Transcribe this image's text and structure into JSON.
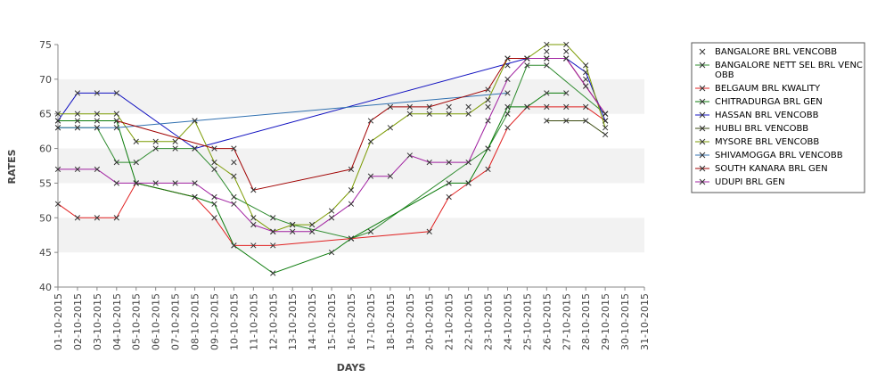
{
  "chart_data": {
    "type": "line",
    "xlabel": "DAYS",
    "ylabel": "RATES",
    "ylim": [
      40,
      75
    ],
    "yticks": [
      40,
      45,
      50,
      55,
      60,
      65,
      70,
      75
    ],
    "grid": "alternating horizontal bands",
    "legend_position": "right",
    "marker": "x",
    "categories": [
      "01-10-2015",
      "02-10-2015",
      "03-10-2015",
      "04-10-2015",
      "05-10-2015",
      "06-10-2015",
      "07-10-2015",
      "08-10-2015",
      "09-10-2015",
      "10-10-2015",
      "11-10-2015",
      "12-10-2015",
      "13-10-2015",
      "14-10-2015",
      "15-10-2015",
      "16-10-2015",
      "17-10-2015",
      "18-10-2015",
      "19-10-2015",
      "20-10-2015",
      "21-10-2015",
      "22-10-2015",
      "23-10-2015",
      "24-10-2015",
      "25-10-2015",
      "26-10-2015",
      "27-10-2015",
      "28-10-2015",
      "29-10-2015",
      "30-10-2015",
      "31-10-2015"
    ],
    "series": [
      {
        "name": "BANGALORE BRL VENCOBB",
        "color": "#7a7a7a",
        "line": false,
        "values": [
          null,
          null,
          null,
          null,
          null,
          null,
          null,
          null,
          null,
          58,
          null,
          null,
          null,
          null,
          null,
          null,
          null,
          null,
          null,
          null,
          66,
          66,
          66,
          72,
          null,
          74,
          74,
          70,
          64,
          null,
          null
        ]
      },
      {
        "name": "BANGALORE NETT SEL BRL VENCOBB",
        "color": "#2e8b2e",
        "line": true,
        "values": [
          63,
          63,
          63,
          58,
          58,
          60,
          60,
          60,
          57,
          53,
          null,
          50,
          49,
          null,
          null,
          47,
          48,
          null,
          null,
          null,
          null,
          null,
          60,
          65,
          72,
          72,
          null,
          null,
          65,
          null,
          null
        ]
      },
      {
        "name": "BELGAUM BRL KWALITY",
        "color": "#e02020",
        "line": true,
        "values": [
          52,
          50,
          50,
          50,
          55,
          null,
          null,
          53,
          50,
          46,
          46,
          46,
          null,
          null,
          null,
          47,
          null,
          null,
          null,
          48,
          53,
          55,
          57,
          63,
          66,
          66,
          66,
          66,
          64,
          null,
          null
        ]
      },
      {
        "name": "CHITRADURGA BRL GEN",
        "color": "#0a7a0a",
        "line": true,
        "values": [
          64,
          64,
          64,
          64,
          55,
          null,
          null,
          53,
          52,
          46,
          null,
          42,
          null,
          null,
          45,
          47,
          null,
          null,
          null,
          null,
          55,
          55,
          60,
          66,
          66,
          68,
          68,
          null,
          null,
          null,
          null
        ]
      },
      {
        "name": "HASSAN BRL VENCOBB",
        "color": "#1010c0",
        "line": true,
        "values": [
          64,
          68,
          68,
          68,
          null,
          null,
          null,
          60,
          null,
          null,
          null,
          null,
          null,
          null,
          null,
          null,
          null,
          null,
          null,
          null,
          null,
          null,
          null,
          null,
          73,
          73,
          73,
          71,
          64,
          null,
          null
        ]
      },
      {
        "name": "HUBLI BRL VENCOBB",
        "color": "#3a4a10",
        "line": true,
        "values": [
          null,
          null,
          null,
          null,
          null,
          null,
          null,
          null,
          null,
          null,
          null,
          null,
          null,
          null,
          null,
          null,
          null,
          null,
          null,
          null,
          null,
          null,
          null,
          null,
          null,
          64,
          64,
          64,
          62,
          null,
          null
        ]
      },
      {
        "name": "MYSORE BRL VENCOBB",
        "color": "#7a9a00",
        "line": true,
        "values": [
          65,
          65,
          65,
          65,
          61,
          61,
          61,
          64,
          58,
          56,
          50,
          48,
          49,
          49,
          51,
          54,
          61,
          63,
          65,
          65,
          65,
          65,
          67,
          73,
          73,
          75,
          75,
          72,
          63,
          null,
          null
        ]
      },
      {
        "name": "SHIVAMOGGA BRL VENCOBB",
        "color": "#3070b0",
        "line": true,
        "values": [
          63,
          63,
          63,
          63,
          null,
          null,
          null,
          64,
          null,
          null,
          null,
          null,
          null,
          null,
          null,
          null,
          null,
          null,
          null,
          null,
          null,
          null,
          null,
          68,
          null,
          null,
          null,
          null,
          null,
          null,
          null
        ]
      },
      {
        "name": "SOUTH KANARA BRL GEN",
        "color": "#a00000",
        "line": true,
        "values": [
          null,
          null,
          null,
          64,
          null,
          null,
          null,
          null,
          60,
          60,
          54,
          null,
          null,
          null,
          null,
          57,
          64,
          66,
          66,
          66,
          null,
          null,
          68.5,
          73,
          73,
          73,
          73,
          69,
          65,
          null,
          null
        ]
      },
      {
        "name": "UDUPI BRL GEN",
        "color": "#a020a0",
        "line": true,
        "values": [
          57,
          57,
          57,
          55,
          55,
          55,
          55,
          55,
          53,
          52,
          49,
          48,
          48,
          48,
          50,
          52,
          56,
          56,
          59,
          58,
          58,
          58,
          64,
          70,
          73,
          73,
          73,
          69,
          65,
          null,
          null
        ]
      }
    ]
  }
}
